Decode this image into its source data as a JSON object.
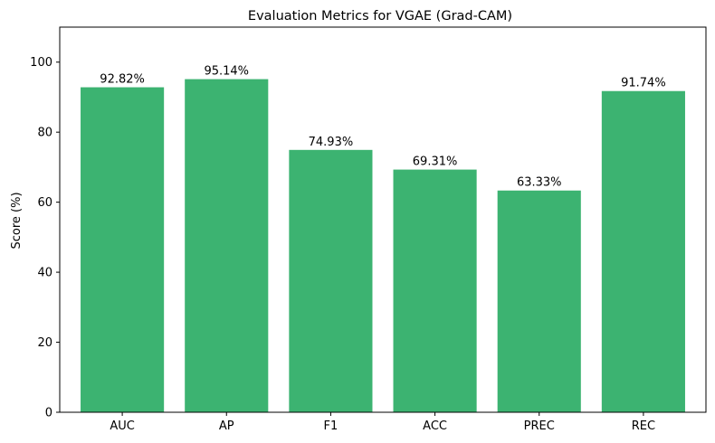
{
  "chart_data": {
    "type": "bar",
    "title": "Evaluation Metrics for VGAE (Grad-CAM)",
    "xlabel": "",
    "ylabel": "Score (%)",
    "categories": [
      "AUC",
      "AP",
      "F1",
      "ACC",
      "PREC",
      "REC"
    ],
    "values": [
      92.82,
      95.14,
      74.93,
      69.31,
      63.33,
      91.74
    ],
    "data_labels": [
      "92.82%",
      "95.14%",
      "74.93%",
      "69.31%",
      "63.33%",
      "91.74%"
    ],
    "ylim": [
      0,
      110
    ],
    "yticks": [
      0,
      20,
      40,
      60,
      80,
      100
    ],
    "bar_color": "#3cb371",
    "grid": false,
    "legend": "none"
  }
}
